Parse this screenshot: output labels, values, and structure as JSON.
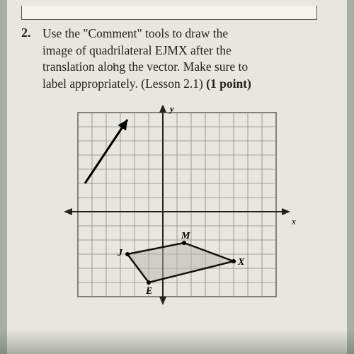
{
  "problem": {
    "number": "2.",
    "line1": "Use the \"Comment\" tools to draw the",
    "line2": "image of quadrilateral EJMX after the",
    "line3": "translation along the vector. Make sure to",
    "line4": "label appropriately.  (Lesson 2.1) ",
    "points": "(1 point)"
  },
  "graph": {
    "type": "coordinate-grid",
    "grid": {
      "x_min": -6,
      "x_max": 8,
      "y_min": -6,
      "y_max": 7,
      "cell_size": 20,
      "grid_color": "#888",
      "grid_width": 0.8,
      "bg_color": "#e8e6e0",
      "border_color": "#333",
      "border_width": 1.5,
      "axis_color": "#222",
      "axis_width": 2
    },
    "axis_labels": {
      "x": "x",
      "y": "y",
      "fontsize": 13,
      "font_style": "italic",
      "font_weight": "bold"
    },
    "vector": {
      "start": [
        -5.5,
        2
      ],
      "end": [
        -2.5,
        6.5
      ],
      "color": "#000",
      "width": 3
    },
    "quadrilateral": {
      "label_E": "E",
      "E": [
        -1,
        -5
      ],
      "label_J": "J",
      "J": [
        -2.5,
        -3
      ],
      "label_M": "M",
      "M": [
        1.5,
        -2.2
      ],
      "label_X": "X",
      "X": [
        5,
        -3.5
      ],
      "stroke": "#111",
      "stroke_width": 2.5,
      "fill": "#b8b6b0",
      "point_color": "#000",
      "point_radius": 3,
      "label_fontsize": 14
    }
  }
}
